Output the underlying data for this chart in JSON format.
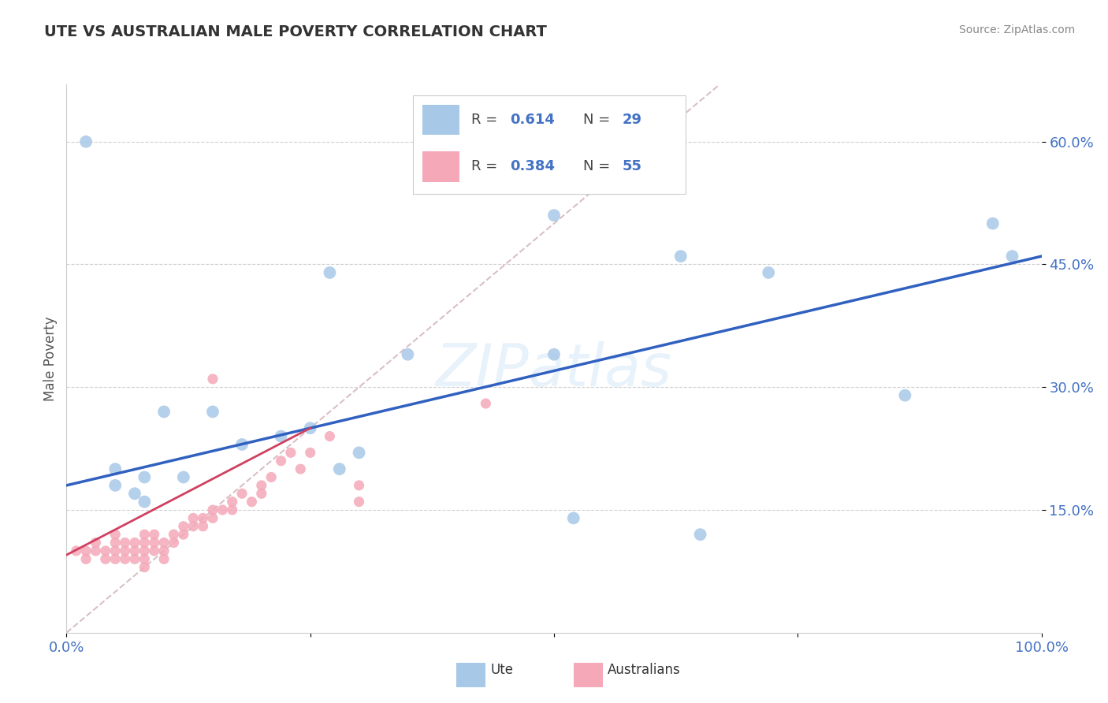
{
  "title": "UTE VS AUSTRALIAN MALE POVERTY CORRELATION CHART",
  "source": "Source: ZipAtlas.com",
  "ylabel": "Male Poverty",
  "xlim": [
    0,
    1
  ],
  "ylim": [
    0,
    0.67
  ],
  "ytick_positions": [
    0.15,
    0.3,
    0.45,
    0.6
  ],
  "ytick_labels": [
    "15.0%",
    "30.0%",
    "45.0%",
    "60.0%"
  ],
  "legend_label_ute": "Ute",
  "legend_label_aus": "Australians",
  "ute_color": "#a8c8e8",
  "aus_color": "#f4a8b8",
  "ute_line_color": "#3060c0",
  "aus_line_color": "#d04060",
  "watermark": "ZIPatlas",
  "ute_x": [
    0.02,
    0.27,
    0.5,
    0.63,
    0.72,
    0.95,
    0.97,
    0.1,
    0.15,
    0.05,
    0.07,
    0.08,
    0.12,
    0.18,
    0.22,
    0.25,
    0.3,
    0.35,
    0.5,
    0.28,
    0.86,
    0.52,
    0.65,
    0.05,
    0.08
  ],
  "ute_y": [
    0.6,
    0.44,
    0.51,
    0.46,
    0.44,
    0.5,
    0.46,
    0.27,
    0.27,
    0.2,
    0.17,
    0.19,
    0.19,
    0.23,
    0.24,
    0.25,
    0.22,
    0.34,
    0.34,
    0.2,
    0.29,
    0.14,
    0.12,
    0.18,
    0.16
  ],
  "aus_x": [
    0.01,
    0.02,
    0.02,
    0.03,
    0.03,
    0.04,
    0.04,
    0.05,
    0.05,
    0.05,
    0.05,
    0.06,
    0.06,
    0.06,
    0.07,
    0.07,
    0.07,
    0.08,
    0.08,
    0.08,
    0.08,
    0.08,
    0.09,
    0.09,
    0.09,
    0.1,
    0.1,
    0.1,
    0.11,
    0.11,
    0.12,
    0.12,
    0.13,
    0.13,
    0.14,
    0.14,
    0.15,
    0.15,
    0.16,
    0.17,
    0.17,
    0.18,
    0.19,
    0.2,
    0.2,
    0.21,
    0.22,
    0.23,
    0.24,
    0.25,
    0.27,
    0.3,
    0.3,
    0.43,
    0.15
  ],
  "aus_y": [
    0.1,
    0.1,
    0.09,
    0.11,
    0.1,
    0.1,
    0.09,
    0.1,
    0.09,
    0.11,
    0.12,
    0.11,
    0.1,
    0.09,
    0.1,
    0.11,
    0.09,
    0.12,
    0.1,
    0.11,
    0.09,
    0.08,
    0.11,
    0.1,
    0.12,
    0.11,
    0.1,
    0.09,
    0.12,
    0.11,
    0.13,
    0.12,
    0.13,
    0.14,
    0.14,
    0.13,
    0.15,
    0.14,
    0.15,
    0.16,
    0.15,
    0.17,
    0.16,
    0.18,
    0.17,
    0.19,
    0.21,
    0.22,
    0.2,
    0.22,
    0.24,
    0.18,
    0.16,
    0.28,
    0.31
  ],
  "ute_line_x0": 0.0,
  "ute_line_y0": 0.18,
  "ute_line_x1": 1.0,
  "ute_line_y1": 0.46,
  "aus_line_x0": 0.0,
  "aus_line_y0": 0.095,
  "aus_line_x1": 0.25,
  "aus_line_y1": 0.25
}
